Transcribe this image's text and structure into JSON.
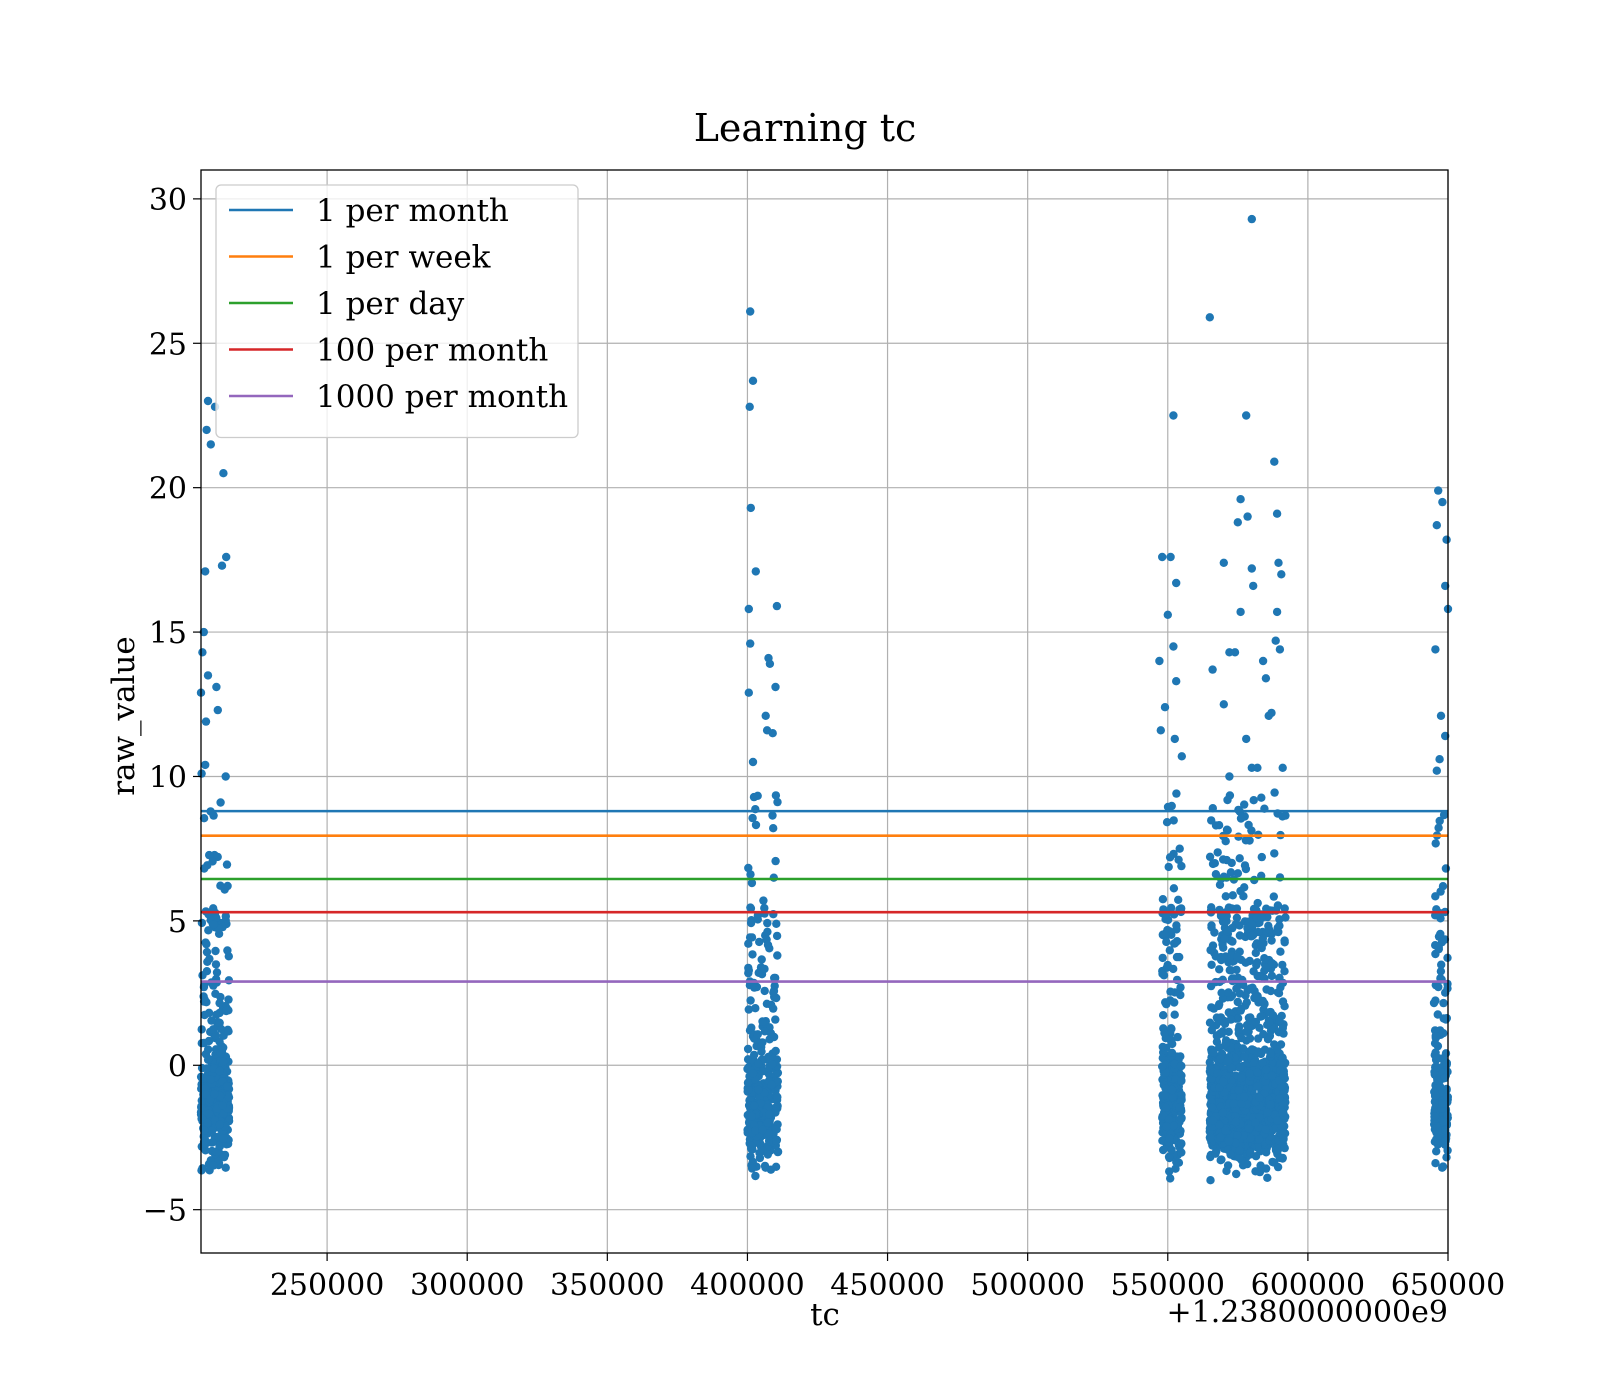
{
  "chart_data": {
    "type": "scatter",
    "title": "Learning tc",
    "xlabel": "tc",
    "ylabel": "raw_value",
    "x_offset_label": "+1.2380000000e9",
    "x_offset": 1238000000,
    "xlim": [
      205000,
      650000
    ],
    "ylim": [
      -6.5,
      31
    ],
    "x_ticks": [
      250000,
      300000,
      350000,
      400000,
      450000,
      500000,
      550000,
      600000,
      650000
    ],
    "y_ticks": [
      -5,
      0,
      5,
      10,
      15,
      20,
      25,
      30
    ],
    "y_tick_labels": [
      "−5",
      "0",
      "5",
      "10",
      "15",
      "20",
      "25",
      "30"
    ],
    "grid": true,
    "legend_position": "upper-left",
    "hlines": [
      {
        "name": "1 per month",
        "value": 8.8,
        "color": "#1f77b4"
      },
      {
        "name": "1 per week",
        "value": 7.95,
        "color": "#ff7f0e"
      },
      {
        "name": "1 per day",
        "value": 6.45,
        "color": "#2ca02c"
      },
      {
        "name": "100 per month",
        "value": 5.3,
        "color": "#d62728"
      },
      {
        "name": "1000 per month",
        "value": 2.9,
        "color": "#9467bd"
      }
    ],
    "scatter_color": "#1f77b4",
    "clusters": [
      {
        "x_range": [
          205000,
          215000
        ],
        "n": 420
      },
      {
        "x_range": [
          400000,
          411000
        ],
        "n": 380
      },
      {
        "x_range": [
          548000,
          555000
        ],
        "n": 320
      },
      {
        "x_range": [
          565000,
          592000
        ],
        "n": 1500
      },
      {
        "x_range": [
          645000,
          650000
        ],
        "n": 200
      }
    ],
    "points": [
      [
        207500,
        23.0
      ],
      [
        210000,
        22.8
      ],
      [
        207000,
        22.0
      ],
      [
        208500,
        21.5
      ],
      [
        213000,
        20.5
      ],
      [
        214000,
        17.6
      ],
      [
        212500,
        17.3
      ],
      [
        206500,
        17.1
      ],
      [
        206000,
        15.0
      ],
      [
        205500,
        14.3
      ],
      [
        207500,
        13.5
      ],
      [
        210500,
        13.1
      ],
      [
        205000,
        12.9
      ],
      [
        211000,
        12.3
      ],
      [
        206800,
        11.9
      ],
      [
        206500,
        10.4
      ],
      [
        213800,
        10.0
      ],
      [
        205200,
        10.1
      ],
      [
        212000,
        9.1
      ],
      [
        401000,
        26.1
      ],
      [
        402000,
        23.7
      ],
      [
        400800,
        22.8
      ],
      [
        401200,
        19.3
      ],
      [
        403000,
        17.1
      ],
      [
        400500,
        15.8
      ],
      [
        410500,
        15.9
      ],
      [
        401000,
        14.6
      ],
      [
        407500,
        14.1
      ],
      [
        408000,
        13.9
      ],
      [
        410000,
        13.1
      ],
      [
        400500,
        12.9
      ],
      [
        406500,
        12.1
      ],
      [
        407000,
        11.6
      ],
      [
        409000,
        11.5
      ],
      [
        402000,
        10.5
      ],
      [
        580000,
        29.3
      ],
      [
        565000,
        25.9
      ],
      [
        552000,
        22.5
      ],
      [
        578000,
        22.5
      ],
      [
        588000,
        20.9
      ],
      [
        576000,
        19.6
      ],
      [
        589000,
        19.1
      ],
      [
        578500,
        19.0
      ],
      [
        575000,
        18.8
      ],
      [
        548000,
        17.6
      ],
      [
        551000,
        17.6
      ],
      [
        570000,
        17.4
      ],
      [
        589500,
        17.4
      ],
      [
        580000,
        17.2
      ],
      [
        590500,
        17.0
      ],
      [
        553000,
        16.7
      ],
      [
        580500,
        16.6
      ],
      [
        576000,
        15.7
      ],
      [
        589000,
        15.7
      ],
      [
        550000,
        15.6
      ],
      [
        588500,
        14.7
      ],
      [
        590000,
        14.4
      ],
      [
        552000,
        14.5
      ],
      [
        572000,
        14.3
      ],
      [
        574000,
        14.3
      ],
      [
        547000,
        14.0
      ],
      [
        584000,
        14.0
      ],
      [
        566000,
        13.7
      ],
      [
        585000,
        13.4
      ],
      [
        553000,
        13.3
      ],
      [
        549000,
        12.4
      ],
      [
        570000,
        12.5
      ],
      [
        587000,
        12.2
      ],
      [
        586000,
        12.1
      ],
      [
        547500,
        11.6
      ],
      [
        552500,
        11.3
      ],
      [
        555000,
        10.7
      ],
      [
        578000,
        11.3
      ],
      [
        580000,
        10.3
      ],
      [
        582000,
        10.3
      ],
      [
        591000,
        10.3
      ],
      [
        572000,
        10.0
      ],
      [
        646500,
        19.9
      ],
      [
        648000,
        19.5
      ],
      [
        646000,
        18.7
      ],
      [
        649500,
        18.2
      ],
      [
        649000,
        16.6
      ],
      [
        650000,
        15.8
      ],
      [
        645500,
        14.4
      ],
      [
        647500,
        12.1
      ],
      [
        649000,
        11.4
      ],
      [
        647000,
        10.6
      ],
      [
        646000,
        10.2
      ]
    ]
  }
}
